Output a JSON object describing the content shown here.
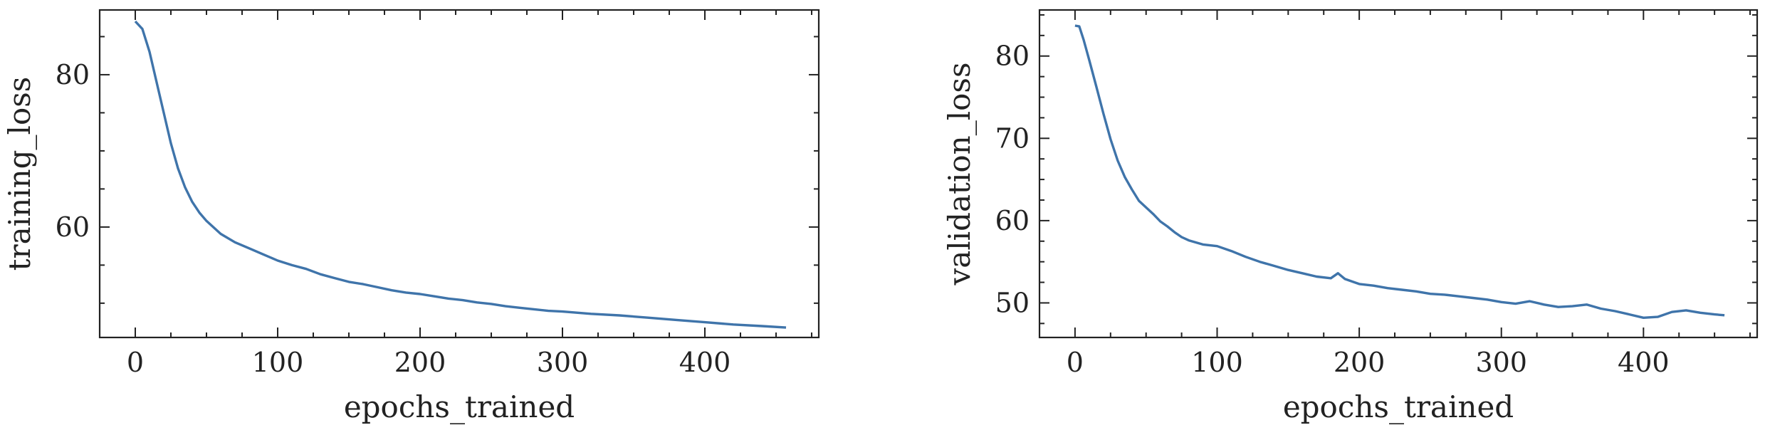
{
  "chart_data": [
    {
      "type": "line",
      "title": "",
      "xlabel": "epochs_trained",
      "ylabel": "training_loss",
      "xlim": [
        -25,
        480
      ],
      "ylim": [
        45.5,
        88.5
      ],
      "xticks": [
        0,
        100,
        200,
        300,
        400
      ],
      "yticks": [
        60,
        80
      ],
      "x_tick_labels": [
        "0",
        "100",
        "200",
        "300",
        "400"
      ],
      "y_tick_labels": [
        "60",
        "80"
      ],
      "grid": false,
      "line_color": "#3f74aa",
      "series": [
        {
          "x": [
            0,
            5,
            10,
            15,
            20,
            25,
            30,
            35,
            40,
            45,
            50,
            60,
            70,
            80,
            90,
            100,
            110,
            120,
            130,
            140,
            150,
            160,
            170,
            180,
            190,
            200,
            210,
            220,
            230,
            240,
            250,
            260,
            270,
            280,
            290,
            300,
            320,
            340,
            360,
            380,
            400,
            420,
            440,
            457
          ],
          "y": [
            87,
            86,
            83,
            79,
            75,
            71,
            67.7,
            65.2,
            63.3,
            61.9,
            60.8,
            59.1,
            58,
            57.2,
            56.4,
            55.6,
            55,
            54.5,
            53.8,
            53.3,
            52.8,
            52.5,
            52.1,
            51.7,
            51.4,
            51.2,
            50.9,
            50.6,
            50.4,
            50.1,
            49.9,
            49.6,
            49.4,
            49.2,
            49,
            48.9,
            48.6,
            48.4,
            48.1,
            47.8,
            47.5,
            47.2,
            47,
            46.8
          ]
        }
      ]
    },
    {
      "type": "line",
      "title": "",
      "xlabel": "epochs_trained",
      "ylabel": "validation_loss",
      "xlim": [
        -25,
        480
      ],
      "ylim": [
        45.8,
        85.6
      ],
      "xticks": [
        0,
        100,
        200,
        300,
        400
      ],
      "yticks": [
        50,
        60,
        70,
        80
      ],
      "x_tick_labels": [
        "0",
        "100",
        "200",
        "300",
        "400"
      ],
      "y_tick_labels": [
        "50",
        "60",
        "70",
        "80"
      ],
      "grid": false,
      "line_color": "#3f74aa",
      "series": [
        {
          "x": [
            0,
            3,
            6,
            10,
            15,
            20,
            25,
            30,
            35,
            40,
            45,
            50,
            55,
            60,
            65,
            70,
            75,
            80,
            90,
            100,
            110,
            120,
            130,
            140,
            150,
            160,
            170,
            180,
            185,
            190,
            200,
            210,
            220,
            230,
            240,
            250,
            260,
            270,
            280,
            290,
            300,
            310,
            320,
            330,
            340,
            350,
            360,
            370,
            380,
            390,
            400,
            410,
            420,
            430,
            440,
            450,
            457
          ],
          "y": [
            83.7,
            83.6,
            82,
            79.5,
            76.3,
            73,
            69.9,
            67.3,
            65.3,
            63.8,
            62.4,
            61.6,
            60.8,
            59.9,
            59.3,
            58.6,
            58,
            57.6,
            57.1,
            56.9,
            56.3,
            55.6,
            55,
            54.5,
            54,
            53.6,
            53.2,
            53,
            53.6,
            52.9,
            52.3,
            52.1,
            51.8,
            51.6,
            51.4,
            51.1,
            51,
            50.8,
            50.6,
            50.4,
            50.1,
            49.9,
            50.2,
            49.8,
            49.5,
            49.6,
            49.8,
            49.3,
            49,
            48.6,
            48.2,
            48.3,
            48.9,
            49.1,
            48.8,
            48.6,
            48.5
          ]
        }
      ]
    }
  ]
}
